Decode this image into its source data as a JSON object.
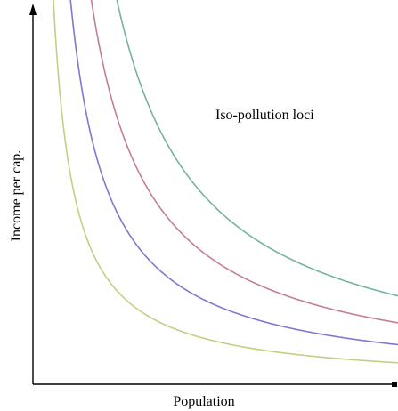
{
  "chart_data": {
    "type": "line",
    "title": "",
    "annotation": "Iso-pollution loci",
    "xlabel": "Population",
    "ylabel": "Income per cap.",
    "xticks": [],
    "yticks": [],
    "grid": false,
    "legend": "none",
    "function_form": "y = k / x",
    "series": [
      {
        "k": 5.6,
        "color": "#c8cc84"
      },
      {
        "k": 10.3,
        "color": "#7f78d0"
      },
      {
        "k": 16.0,
        "color": "#c47c9c"
      },
      {
        "k": 23.0,
        "color": "#74b49c"
      }
    ]
  },
  "colors": {
    "axis": "#000000",
    "background": "#ffffff"
  }
}
